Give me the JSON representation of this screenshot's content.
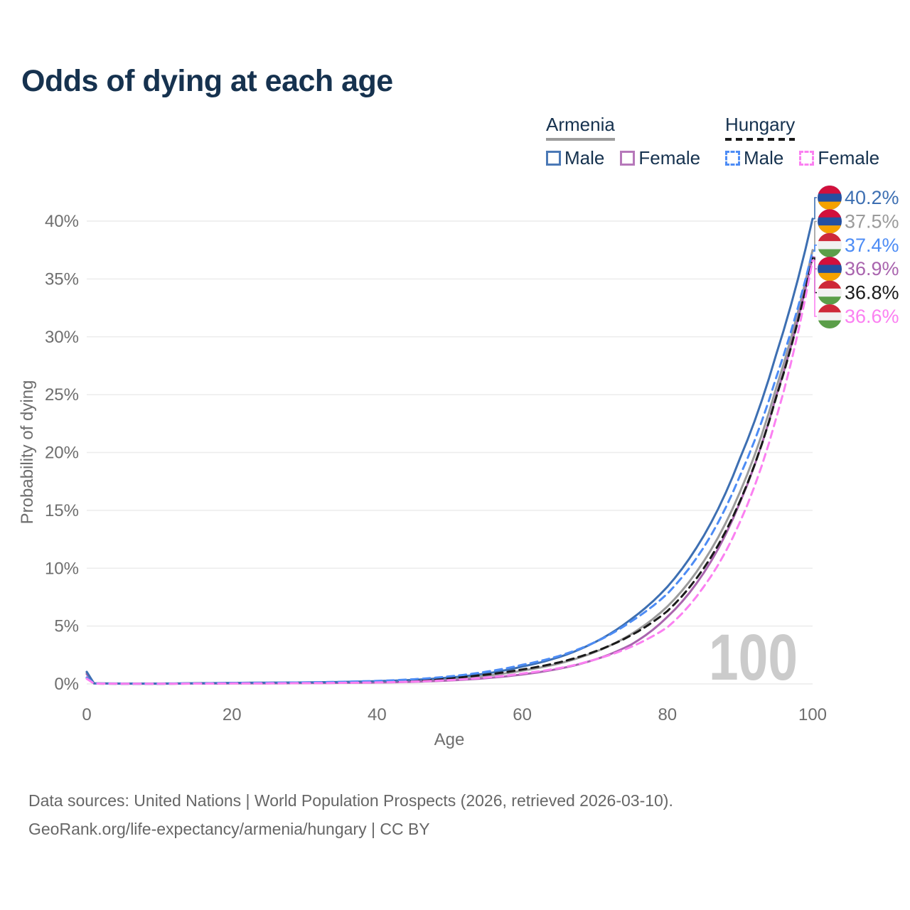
{
  "header": {
    "title": "Odds of dying at each age"
  },
  "legend": {
    "groups": [
      {
        "name": "Armenia",
        "line_style": "solid",
        "line_color": "#9b9b9b",
        "items": [
          {
            "label": "Male",
            "color": "#4b79b6",
            "dash": "solid"
          },
          {
            "label": "Female",
            "color": "#b678ba",
            "dash": "solid"
          }
        ]
      },
      {
        "name": "Hungary",
        "line_style": "dashed",
        "line_color": "#1a1a1a",
        "items": [
          {
            "label": "Male",
            "color": "#4d8cf5",
            "dash": "dashed"
          },
          {
            "label": "Female",
            "color": "#fb80f1",
            "dash": "dashed"
          }
        ]
      }
    ]
  },
  "chart_data": {
    "type": "line",
    "title": "Odds of dying at each age",
    "xlabel": "Age",
    "ylabel": "Probability of dying",
    "xlim": [
      0,
      100
    ],
    "ylim": [
      0,
      40
    ],
    "grid": "horizontal",
    "legend_position": "top-right",
    "x_ticks": [
      0,
      20,
      40,
      60,
      80,
      100
    ],
    "y_ticks": [
      0,
      5,
      10,
      15,
      20,
      25,
      30,
      35,
      40
    ],
    "y_tick_labels": [
      "0%",
      "5%",
      "10%",
      "15%",
      "20%",
      "25%",
      "30%",
      "35%",
      "40%"
    ],
    "watermark": "100",
    "anchor_ages": [
      0,
      1,
      5,
      10,
      15,
      20,
      25,
      30,
      35,
      40,
      45,
      50,
      55,
      60,
      65,
      70,
      75,
      80,
      85,
      90,
      95,
      100
    ],
    "flags": {
      "armenia": [
        "#D2103C",
        "#2450A0",
        "#F5A200"
      ],
      "hungary": [
        "#CE2939",
        "#F2F2F2",
        "#5B9E49"
      ]
    },
    "series": [
      {
        "name": "Armenia Male",
        "country": "Armenia",
        "sex": "Male",
        "dash": "solid",
        "color": "#3d6fb2",
        "flag": "armenia",
        "end_label": "40.2%",
        "end_value": 40.2,
        "values": [
          1.05,
          0.05,
          0.03,
          0.03,
          0.06,
          0.09,
          0.11,
          0.13,
          0.17,
          0.24,
          0.35,
          0.55,
          0.9,
          1.5,
          2.3,
          3.6,
          5.6,
          8.4,
          12.8,
          19.5,
          28.5,
          40.2
        ]
      },
      {
        "name": "Armenia",
        "country": "Armenia",
        "sex": "Both",
        "dash": "solid",
        "color": "#9b9b9b",
        "flag": "armenia",
        "end_label": "37.5%",
        "end_value": 37.5,
        "values": [
          0.95,
          0.04,
          0.03,
          0.02,
          0.05,
          0.07,
          0.08,
          0.1,
          0.13,
          0.18,
          0.27,
          0.43,
          0.7,
          1.15,
          1.75,
          2.75,
          4.3,
          6.7,
          10.6,
          16.6,
          25.6,
          37.5
        ]
      },
      {
        "name": "Hungary Male",
        "country": "Hungary",
        "sex": "Male",
        "dash": "dashed",
        "color": "#4d8cf5",
        "flag": "hungary",
        "end_label": "37.4%",
        "end_value": 37.4,
        "values": [
          0.55,
          0.04,
          0.02,
          0.02,
          0.05,
          0.08,
          0.1,
          0.13,
          0.18,
          0.26,
          0.4,
          0.65,
          1.05,
          1.65,
          2.4,
          3.6,
          5.4,
          7.8,
          11.8,
          18.0,
          26.5,
          37.4
        ]
      },
      {
        "name": "Armenia Female",
        "country": "Armenia",
        "sex": "Female",
        "dash": "solid",
        "color": "#a964ae",
        "flag": "armenia",
        "end_label": "36.9%",
        "end_value": 36.9,
        "values": [
          0.85,
          0.04,
          0.02,
          0.02,
          0.03,
          0.04,
          0.05,
          0.07,
          0.09,
          0.12,
          0.18,
          0.3,
          0.5,
          0.82,
          1.3,
          2.1,
          3.4,
          5.8,
          9.6,
          15.7,
          24.9,
          36.9
        ]
      },
      {
        "name": "Hungary",
        "country": "Hungary",
        "sex": "Both",
        "dash": "dashed",
        "color": "#1a1a1a",
        "flag": "hungary",
        "end_label": "36.8%",
        "end_value": 36.8,
        "values": [
          0.5,
          0.03,
          0.02,
          0.02,
          0.04,
          0.06,
          0.08,
          0.1,
          0.14,
          0.19,
          0.3,
          0.5,
          0.8,
          1.25,
          1.85,
          2.8,
          4.2,
          6.3,
          10.0,
          15.8,
          24.8,
          36.8
        ]
      },
      {
        "name": "Hungary Female",
        "country": "Hungary",
        "sex": "Female",
        "dash": "dashed",
        "color": "#fb80f1",
        "flag": "hungary",
        "end_label": "36.6%",
        "end_value": 36.6,
        "values": [
          0.45,
          0.03,
          0.02,
          0.01,
          0.03,
          0.04,
          0.05,
          0.07,
          0.09,
          0.13,
          0.2,
          0.33,
          0.55,
          0.9,
          1.35,
          2.1,
          3.2,
          4.9,
          8.4,
          14.0,
          23.0,
          36.6
        ]
      }
    ]
  },
  "footer": {
    "line1": "Data sources: United Nations | World Population Prospects (2026, retrieved 2026-03-10).",
    "line2": "GeoRank.org/life-expectancy/armenia/hungary | CC BY"
  }
}
